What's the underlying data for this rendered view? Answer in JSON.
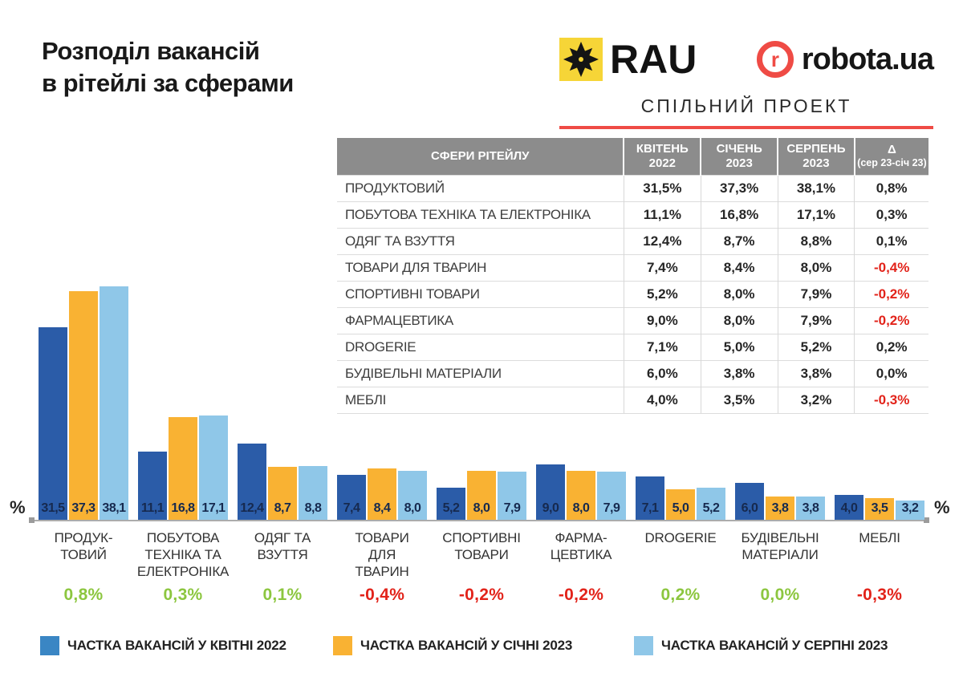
{
  "header": {
    "title_line1": "Розподіл вакансій",
    "title_line2": "в рітейлі за сферами"
  },
  "branding": {
    "rau_text": "RAU",
    "robota_icon_letter": "r",
    "robota_text": "robota.ua",
    "subtitle": "СПІЛЬНИЙ ПРОЕКТ",
    "rau_yellow": "#F6D537",
    "accent_red": "#EF4B45"
  },
  "table": {
    "headers": [
      {
        "line1": "СФЕРИ РІТЕЙЛУ",
        "line2": "",
        "small2": false
      },
      {
        "line1": "КВІТЕНЬ",
        "line2": "2022",
        "small2": false
      },
      {
        "line1": "СІЧЕНЬ",
        "line2": "2023",
        "small2": false
      },
      {
        "line1": "СЕРПЕНЬ",
        "line2": "2023",
        "small2": false
      },
      {
        "line1": "Δ",
        "line2": "(сер 23-січ 23)",
        "small2": true
      }
    ],
    "rows": [
      {
        "label": "ПРОДУКТОВИЙ",
        "values": [
          "31,5%",
          "37,3%",
          "38,1%"
        ],
        "delta": "0,8%"
      },
      {
        "label": "ПОБУТОВА ТЕХНІКА ТА ЕЛЕКТРОНІКА",
        "values": [
          "11,1%",
          "16,8%",
          "17,1%"
        ],
        "delta": "0,3%"
      },
      {
        "label": "ОДЯГ ТА ВЗУТТЯ",
        "values": [
          "12,4%",
          "8,7%",
          "8,8%"
        ],
        "delta": "0,1%"
      },
      {
        "label": "ТОВАРИ ДЛЯ ТВАРИН",
        "values": [
          "7,4%",
          "8,4%",
          "8,0%"
        ],
        "delta": "-0,4%"
      },
      {
        "label": "СПОРТИВНІ ТОВАРИ",
        "values": [
          "5,2%",
          "8,0%",
          "7,9%"
        ],
        "delta": "-0,2%"
      },
      {
        "label": "ФАРМАЦЕВТИКА",
        "values": [
          "9,0%",
          "8,0%",
          "7,9%"
        ],
        "delta": "-0,2%"
      },
      {
        "label": "DROGERIE",
        "values": [
          "7,1%",
          "5,0%",
          "5,2%"
        ],
        "delta": "0,2%"
      },
      {
        "label": "БУДІВЕЛЬНІ МАТЕРІАЛИ",
        "values": [
          "6,0%",
          "3,8%",
          "3,8%"
        ],
        "delta": "0,0%"
      },
      {
        "label": "МЕБЛІ",
        "values": [
          "4,0%",
          "3,5%",
          "3,2%"
        ],
        "delta": "-0,3%"
      }
    ]
  },
  "chart_data": {
    "type": "bar",
    "title": "Розподіл вакансій в рітейлі за сферами",
    "categories": [
      "ПРОДУКТОВИЙ",
      "ПОБУТОВА ТЕХНІКА ТА ЕЛЕКТРОНІКА",
      "ОДЯГ ТА ВЗУТТЯ",
      "ТОВАРИ ДЛЯ ТВАРИН",
      "СПОРТИВНІ ТОВАРИ",
      "ФАРМАЦЕВТИКА",
      "DROGERIE",
      "БУДІВЕЛЬНІ МАТЕРІАЛИ",
      "МЕБЛІ"
    ],
    "category_label_lines": [
      [
        "ПРОДУК-",
        "ТОВИЙ"
      ],
      [
        "ПОБУТОВА",
        "ТЕХНІКА ТА",
        "ЕЛЕКТРОНІКА"
      ],
      [
        "ОДЯГ ТА",
        "ВЗУТТЯ"
      ],
      [
        "ТОВАРИ",
        "ДЛЯ",
        "ТВАРИН"
      ],
      [
        "СПОРТИВНІ",
        "ТОВАРИ"
      ],
      [
        "ФАРМА-",
        "ЦЕВТИКА"
      ],
      [
        "DROGERIE"
      ],
      [
        "БУДІВЕЛЬНІ",
        "МАТЕРІАЛИ"
      ],
      [
        "МЕБЛІ"
      ]
    ],
    "series": [
      {
        "name": "ЧАСТКА ВАКАНСІЙ У КВІТНІ 2022",
        "color": "#2B5CA8",
        "values": [
          31.5,
          11.1,
          12.4,
          7.4,
          5.2,
          9.0,
          7.1,
          6.0,
          4.0
        ]
      },
      {
        "name": "ЧАСТКА ВАКАНСІЙ У СІЧНІ 2023",
        "color": "#F9B233",
        "values": [
          37.3,
          16.8,
          8.7,
          8.4,
          8.0,
          8.0,
          5.0,
          3.8,
          3.5
        ]
      },
      {
        "name": "ЧАСТКА ВАКАНСІЙ У СЕРПНІ 2023",
        "color": "#8FC7E8",
        "values": [
          38.1,
          17.1,
          8.8,
          8.0,
          7.9,
          7.9,
          5.2,
          3.8,
          3.2
        ]
      }
    ],
    "deltas": [
      "0,8%",
      "0,3%",
      "0,1%",
      "-0,4%",
      "-0,2%",
      "-0,2%",
      "0,2%",
      "0,0%",
      "-0,3%"
    ],
    "axis_label_left": "%",
    "axis_label_right": "%",
    "ylim": [
      0,
      40
    ],
    "grid": false,
    "legend_position": "bottom",
    "delta_positive_color": "#8CC63F",
    "delta_negative_color": "#E2231A"
  },
  "legend": {
    "items": [
      {
        "label": "ЧАСТКА ВАКАНСІЙ У КВІТНІ 2022",
        "color": "#3A86C4"
      },
      {
        "label": "ЧАСТКА ВАКАНСІЙ У СІЧНІ 2023",
        "color": "#F9B233"
      },
      {
        "label": "ЧАСТКА ВАКАНСІЙ У СЕРПНІ 2023",
        "color": "#8FC7E8"
      }
    ]
  }
}
